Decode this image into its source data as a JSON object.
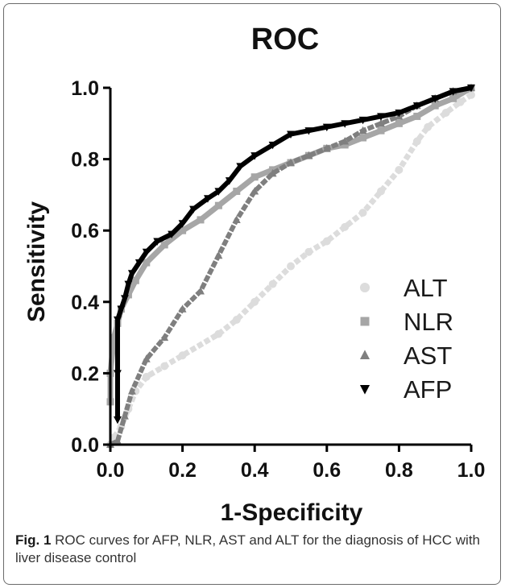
{
  "chart_data": {
    "type": "line",
    "title": "ROC",
    "xlabel": "1-Specificity",
    "ylabel": "Sensitivity",
    "xlim": [
      0,
      1
    ],
    "ylim": [
      0,
      1
    ],
    "x_ticks": [
      "0.0",
      "0.2",
      "0.4",
      "0.6",
      "0.8",
      "1.0"
    ],
    "y_ticks": [
      "0.0",
      "0.2",
      "0.4",
      "0.6",
      "0.8",
      "1.0"
    ],
    "grid": false,
    "legend_position": "lower-right",
    "series": [
      {
        "name": "ALT",
        "color": "#dcdcdc",
        "marker": "circle",
        "points": [
          [
            0,
            0
          ],
          [
            0.01,
            0.02
          ],
          [
            0.03,
            0.05
          ],
          [
            0.05,
            0.1
          ],
          [
            0.07,
            0.15
          ],
          [
            0.1,
            0.19
          ],
          [
            0.15,
            0.22
          ],
          [
            0.2,
            0.25
          ],
          [
            0.3,
            0.31
          ],
          [
            0.35,
            0.35
          ],
          [
            0.4,
            0.4
          ],
          [
            0.45,
            0.45
          ],
          [
            0.5,
            0.5
          ],
          [
            0.55,
            0.54
          ],
          [
            0.6,
            0.57
          ],
          [
            0.65,
            0.61
          ],
          [
            0.7,
            0.65
          ],
          [
            0.75,
            0.71
          ],
          [
            0.8,
            0.77
          ],
          [
            0.85,
            0.85
          ],
          [
            0.88,
            0.89
          ],
          [
            0.93,
            0.93
          ],
          [
            0.97,
            0.96
          ],
          [
            1,
            0.98
          ]
        ]
      },
      {
        "name": "NLR",
        "color": "#a6a6a6",
        "marker": "square",
        "points": [
          [
            0,
            0.12
          ],
          [
            0,
            0.2
          ],
          [
            0.01,
            0.3
          ],
          [
            0.02,
            0.34
          ],
          [
            0.03,
            0.38
          ],
          [
            0.05,
            0.42
          ],
          [
            0.07,
            0.46
          ],
          [
            0.1,
            0.51
          ],
          [
            0.15,
            0.56
          ],
          [
            0.2,
            0.6
          ],
          [
            0.25,
            0.63
          ],
          [
            0.3,
            0.67
          ],
          [
            0.35,
            0.71
          ],
          [
            0.4,
            0.75
          ],
          [
            0.45,
            0.77
          ],
          [
            0.5,
            0.79
          ],
          [
            0.55,
            0.81
          ],
          [
            0.6,
            0.83
          ],
          [
            0.65,
            0.84
          ],
          [
            0.7,
            0.86
          ],
          [
            0.75,
            0.88
          ],
          [
            0.8,
            0.9
          ],
          [
            0.85,
            0.92
          ],
          [
            0.9,
            0.95
          ],
          [
            0.95,
            0.97
          ],
          [
            1,
            1
          ]
        ]
      },
      {
        "name": "AST",
        "color": "#7f7f7f",
        "marker": "triangle",
        "points": [
          [
            0,
            0
          ],
          [
            0.02,
            0.01
          ],
          [
            0.04,
            0.08
          ],
          [
            0.06,
            0.15
          ],
          [
            0.1,
            0.24
          ],
          [
            0.15,
            0.3
          ],
          [
            0.2,
            0.38
          ],
          [
            0.25,
            0.43
          ],
          [
            0.3,
            0.53
          ],
          [
            0.35,
            0.63
          ],
          [
            0.4,
            0.71
          ],
          [
            0.45,
            0.76
          ],
          [
            0.5,
            0.79
          ],
          [
            0.55,
            0.81
          ],
          [
            0.6,
            0.83
          ],
          [
            0.65,
            0.85
          ],
          [
            0.7,
            0.88
          ],
          [
            0.75,
            0.9
          ],
          [
            0.8,
            0.92
          ],
          [
            0.85,
            0.95
          ],
          [
            0.9,
            0.97
          ],
          [
            0.95,
            0.99
          ],
          [
            1,
            1
          ]
        ]
      },
      {
        "name": "AFP",
        "color": "#000000",
        "marker": "triangle-down",
        "points": [
          [
            0.02,
            0.07
          ],
          [
            0.02,
            0.2
          ],
          [
            0.02,
            0.35
          ],
          [
            0.03,
            0.38
          ],
          [
            0.04,
            0.41
          ],
          [
            0.05,
            0.45
          ],
          [
            0.06,
            0.48
          ],
          [
            0.08,
            0.51
          ],
          [
            0.1,
            0.54
          ],
          [
            0.13,
            0.57
          ],
          [
            0.17,
            0.59
          ],
          [
            0.2,
            0.62
          ],
          [
            0.23,
            0.66
          ],
          [
            0.27,
            0.69
          ],
          [
            0.3,
            0.71
          ],
          [
            0.33,
            0.74
          ],
          [
            0.36,
            0.78
          ],
          [
            0.4,
            0.81
          ],
          [
            0.45,
            0.84
          ],
          [
            0.5,
            0.87
          ],
          [
            0.55,
            0.88
          ],
          [
            0.6,
            0.89
          ],
          [
            0.65,
            0.9
          ],
          [
            0.7,
            0.91
          ],
          [
            0.75,
            0.92
          ],
          [
            0.8,
            0.93
          ],
          [
            0.85,
            0.95
          ],
          [
            0.9,
            0.97
          ],
          [
            0.95,
            0.99
          ],
          [
            1,
            1
          ]
        ]
      }
    ]
  },
  "caption": {
    "label": "Fig. 1",
    "text": " ROC curves for AFP, NLR, AST and ALT for the diagnosis of HCC with liver disease control"
  }
}
